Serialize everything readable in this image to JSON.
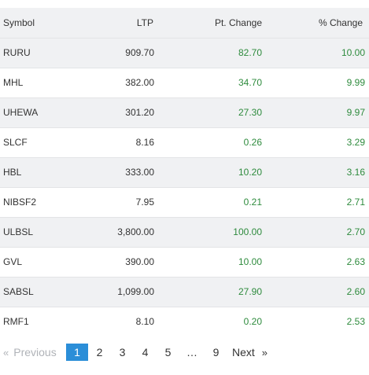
{
  "table": {
    "headers": {
      "symbol": "Symbol",
      "ltp": "LTP",
      "pt_change": "Pt. Change",
      "pct_change": "% Change"
    },
    "rows": [
      {
        "symbol": "RURU",
        "ltp": "909.70",
        "pt_change": "82.70",
        "pct_change": "10.00"
      },
      {
        "symbol": "MHL",
        "ltp": "382.00",
        "pt_change": "34.70",
        "pct_change": "9.99"
      },
      {
        "symbol": "UHEWA",
        "ltp": "301.20",
        "pt_change": "27.30",
        "pct_change": "9.97"
      },
      {
        "symbol": "SLCF",
        "ltp": "8.16",
        "pt_change": "0.26",
        "pct_change": "3.29"
      },
      {
        "symbol": "HBL",
        "ltp": "333.00",
        "pt_change": "10.20",
        "pct_change": "3.16"
      },
      {
        "symbol": "NIBSF2",
        "ltp": "7.95",
        "pt_change": "0.21",
        "pct_change": "2.71"
      },
      {
        "symbol": "ULBSL",
        "ltp": "3,800.00",
        "pt_change": "100.00",
        "pct_change": "2.70"
      },
      {
        "symbol": "GVL",
        "ltp": "390.00",
        "pt_change": "10.00",
        "pct_change": "2.63"
      },
      {
        "symbol": "SABSL",
        "ltp": "1,099.00",
        "pt_change": "27.90",
        "pct_change": "2.60"
      },
      {
        "symbol": "RMF1",
        "ltp": "8.10",
        "pt_change": "0.20",
        "pct_change": "2.53"
      }
    ]
  },
  "pagination": {
    "prev_icon": "«",
    "prev_label": "Previous",
    "pages": [
      "1",
      "2",
      "3",
      "4",
      "5"
    ],
    "ellipsis": "…",
    "last_page": "9",
    "next_label": "Next",
    "next_icon": "»",
    "active_page": "1"
  },
  "colors": {
    "positive": "#2e8b3d",
    "active_page_bg": "#2b8ed8",
    "stripe": "#f0f1f3"
  }
}
